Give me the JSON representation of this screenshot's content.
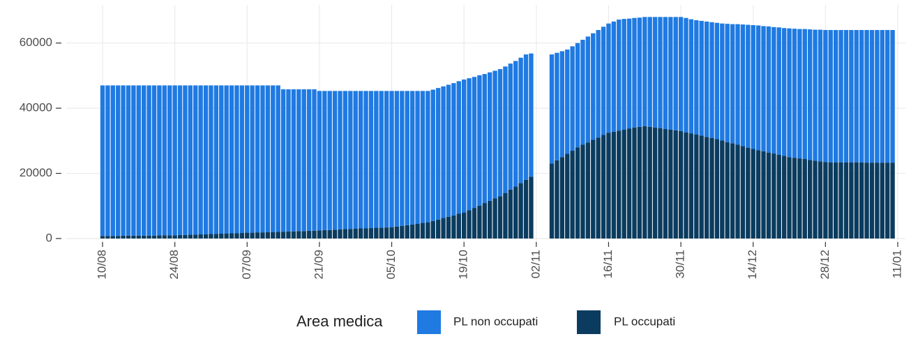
{
  "chart_data": {
    "type": "stacked_bar",
    "legend_title": "Area medica",
    "categories": [
      "10/08",
      null,
      null,
      null,
      null,
      null,
      null,
      null,
      null,
      null,
      null,
      null,
      null,
      null,
      "24/08",
      null,
      null,
      null,
      null,
      null,
      null,
      null,
      null,
      null,
      null,
      null,
      null,
      null,
      "07/09",
      null,
      null,
      null,
      null,
      null,
      null,
      null,
      null,
      null,
      null,
      null,
      null,
      null,
      "21/09",
      null,
      null,
      null,
      null,
      null,
      null,
      null,
      null,
      null,
      null,
      null,
      null,
      null,
      "05/10",
      null,
      null,
      null,
      null,
      null,
      null,
      null,
      null,
      null,
      null,
      null,
      null,
      null,
      "19/10",
      null,
      null,
      null,
      null,
      null,
      null,
      null,
      null,
      null,
      null,
      null,
      null,
      null,
      "02/11",
      null,
      null,
      null,
      null,
      null,
      null,
      null,
      null,
      null,
      null,
      null,
      null,
      null,
      "16/11",
      null,
      null,
      null,
      null,
      null,
      null,
      null,
      null,
      null,
      null,
      null,
      null,
      null,
      "30/11",
      null,
      null,
      null,
      null,
      null,
      null,
      null,
      null,
      null,
      null,
      null,
      null,
      null,
      "14/12",
      null,
      null,
      null,
      null,
      null,
      null,
      null,
      null,
      null,
      null,
      null,
      null,
      null,
      "28/12",
      null,
      null,
      null,
      null,
      null,
      null,
      null,
      null,
      null,
      null,
      null,
      null,
      null,
      "11/01"
    ],
    "series": [
      {
        "name": "PL non occupati",
        "color": "#1f7ae2",
        "values": [
          46200,
          46200,
          46200,
          46200,
          46100,
          46100,
          46100,
          46100,
          46100,
          46100,
          46100,
          46000,
          46000,
          46000,
          46000,
          45900,
          45900,
          45800,
          45800,
          45700,
          45700,
          45600,
          45600,
          45500,
          45500,
          45400,
          45400,
          45300,
          45200,
          45200,
          45100,
          45100,
          45000,
          45000,
          44900,
          43700,
          43600,
          43600,
          43500,
          43500,
          43400,
          43400,
          42800,
          42700,
          42700,
          42600,
          42500,
          42400,
          42400,
          42300,
          42200,
          42200,
          42100,
          42000,
          42000,
          41900,
          41800,
          41600,
          41400,
          41200,
          41000,
          40800,
          40500,
          40300,
          40300,
          40400,
          40400,
          40500,
          40600,
          40700,
          40800,
          40500,
          40200,
          40000,
          39600,
          39400,
          39200,
          39000,
          38800,
          38700,
          38500,
          38500,
          38500,
          37800,
          null,
          null,
          null,
          33500,
          33000,
          32500,
          32000,
          32000,
          32000,
          32200,
          32500,
          32700,
          33000,
          33200,
          33500,
          33800,
          34100,
          34000,
          33700,
          33600,
          33500,
          33500,
          33700,
          33900,
          34100,
          34400,
          34600,
          34800,
          35000,
          35100,
          35000,
          35100,
          35200,
          35400,
          35500,
          35700,
          35900,
          36300,
          36600,
          37000,
          37300,
          37700,
          38000,
          38300,
          38400,
          38700,
          38800,
          39100,
          39200,
          39500,
          39600,
          39700,
          39900,
          40100,
          40200,
          40400,
          40500,
          40600,
          40600,
          40600,
          40600,
          40600,
          40600,
          40600,
          40700,
          40700,
          40700,
          40700,
          40700,
          40700,
          null
        ]
      },
      {
        "name": "PL occupati",
        "color": "#0b3c5f",
        "values": [
          800,
          800,
          800,
          800,
          900,
          900,
          900,
          900,
          900,
          900,
          900,
          1000,
          1000,
          1000,
          1000,
          1100,
          1100,
          1200,
          1200,
          1300,
          1300,
          1400,
          1400,
          1500,
          1500,
          1600,
          1600,
          1700,
          1800,
          1800,
          1900,
          1900,
          2000,
          2000,
          2100,
          2100,
          2200,
          2200,
          2300,
          2300,
          2400,
          2400,
          2500,
          2600,
          2600,
          2700,
          2800,
          2900,
          2900,
          3000,
          3100,
          3100,
          3200,
          3300,
          3300,
          3400,
          3500,
          3700,
          3900,
          4100,
          4300,
          4500,
          4800,
          5000,
          5400,
          5800,
          6300,
          6700,
          7100,
          7600,
          8000,
          8700,
          9400,
          10100,
          10900,
          11600,
          12300,
          13000,
          14000,
          15000,
          16000,
          17000,
          18000,
          19000,
          null,
          null,
          null,
          23000,
          24000,
          25000,
          26000,
          27000,
          28000,
          28800,
          29500,
          30300,
          31000,
          31800,
          32500,
          32800,
          33100,
          33400,
          33800,
          34100,
          34300,
          34500,
          34300,
          34100,
          33900,
          33600,
          33400,
          33200,
          33000,
          32600,
          32300,
          31900,
          31600,
          31200,
          30900,
          30500,
          30100,
          29600,
          29200,
          28800,
          28400,
          27900,
          27500,
          27100,
          26800,
          26400,
          26100,
          25700,
          25400,
          25000,
          24800,
          24600,
          24400,
          24100,
          23900,
          23700,
          23500,
          23400,
          23400,
          23400,
          23400,
          23400,
          23400,
          23400,
          23300,
          23300,
          23300,
          23300,
          23300,
          23300,
          null
        ]
      }
    ],
    "ylim": [
      0,
      70000
    ],
    "yticks": [
      0,
      20000,
      40000,
      60000
    ],
    "grid": true
  }
}
